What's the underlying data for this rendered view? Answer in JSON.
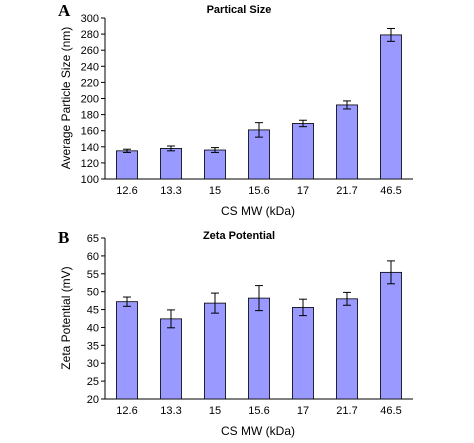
{
  "chart_data": [
    {
      "type": "bar",
      "panel": "A",
      "title": "Partical Size",
      "xlabel": "CS MW (kDa)",
      "ylabel": "Average Particle Size (nm)",
      "ylim": [
        100,
        300
      ],
      "yticks": [
        100,
        120,
        140,
        160,
        180,
        200,
        220,
        240,
        260,
        280,
        300
      ],
      "categories": [
        "12.6",
        "13.3",
        "15",
        "15.6",
        "17",
        "21.7",
        "46.5"
      ],
      "values": [
        135,
        138,
        136,
        161,
        169,
        192,
        279
      ],
      "errors": [
        2,
        3,
        3,
        9,
        4,
        5,
        8
      ],
      "bar_color": "#9999ff",
      "grid": false,
      "legend": "none"
    },
    {
      "type": "bar",
      "panel": "B",
      "title": "Zeta Potential",
      "xlabel": "CS MW (kDa)",
      "ylabel": "Zeta Potential (mV)",
      "ylim": [
        20,
        65
      ],
      "yticks": [
        20,
        25,
        30,
        35,
        40,
        45,
        50,
        55,
        60,
        65
      ],
      "categories": [
        "12.6",
        "13.3",
        "15",
        "15.6",
        "17",
        "21.7",
        "46.5"
      ],
      "values": [
        47.2,
        42.4,
        46.8,
        48.2,
        45.6,
        48.0,
        55.4
      ],
      "errors": [
        1.3,
        2.5,
        2.8,
        3.5,
        2.3,
        1.8,
        3.2
      ],
      "bar_color": "#9999ff",
      "grid": false,
      "legend": "none"
    }
  ]
}
